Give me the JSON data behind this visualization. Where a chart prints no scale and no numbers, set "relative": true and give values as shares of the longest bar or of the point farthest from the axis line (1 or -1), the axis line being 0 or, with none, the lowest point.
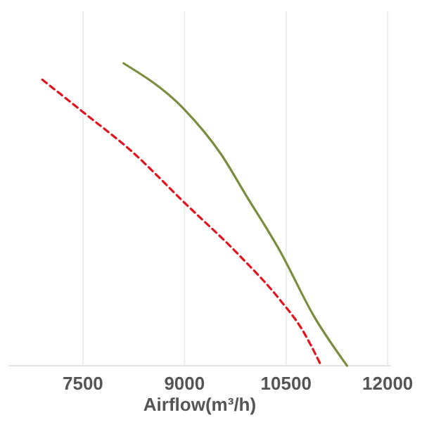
{
  "chart_data": {
    "type": "line",
    "xlabel": "Airflow(m³/h)",
    "relative": true,
    "xlim": [
      6400,
      12050
    ],
    "xticks": [
      7500,
      9000,
      10500,
      12000
    ],
    "grid": "x",
    "series": [
      {
        "color": "#7a8c3e",
        "line_style": "solid",
        "x": [
          8100,
          9000,
          9538,
          9913,
          10413,
          10913,
          11400
        ],
        "values": [
          1,
          0.847,
          0.7,
          0.562,
          0.378,
          0.163,
          0
        ]
      },
      {
        "color": "#e0141e",
        "line_style": "dashed",
        "x": [
          6900,
          7500,
          8225,
          9000,
          9788,
          10413,
          10725,
          11019
        ],
        "values": [
          0.946,
          0.839,
          0.708,
          0.539,
          0.37,
          0.217,
          0.124,
          0
        ]
      }
    ]
  }
}
